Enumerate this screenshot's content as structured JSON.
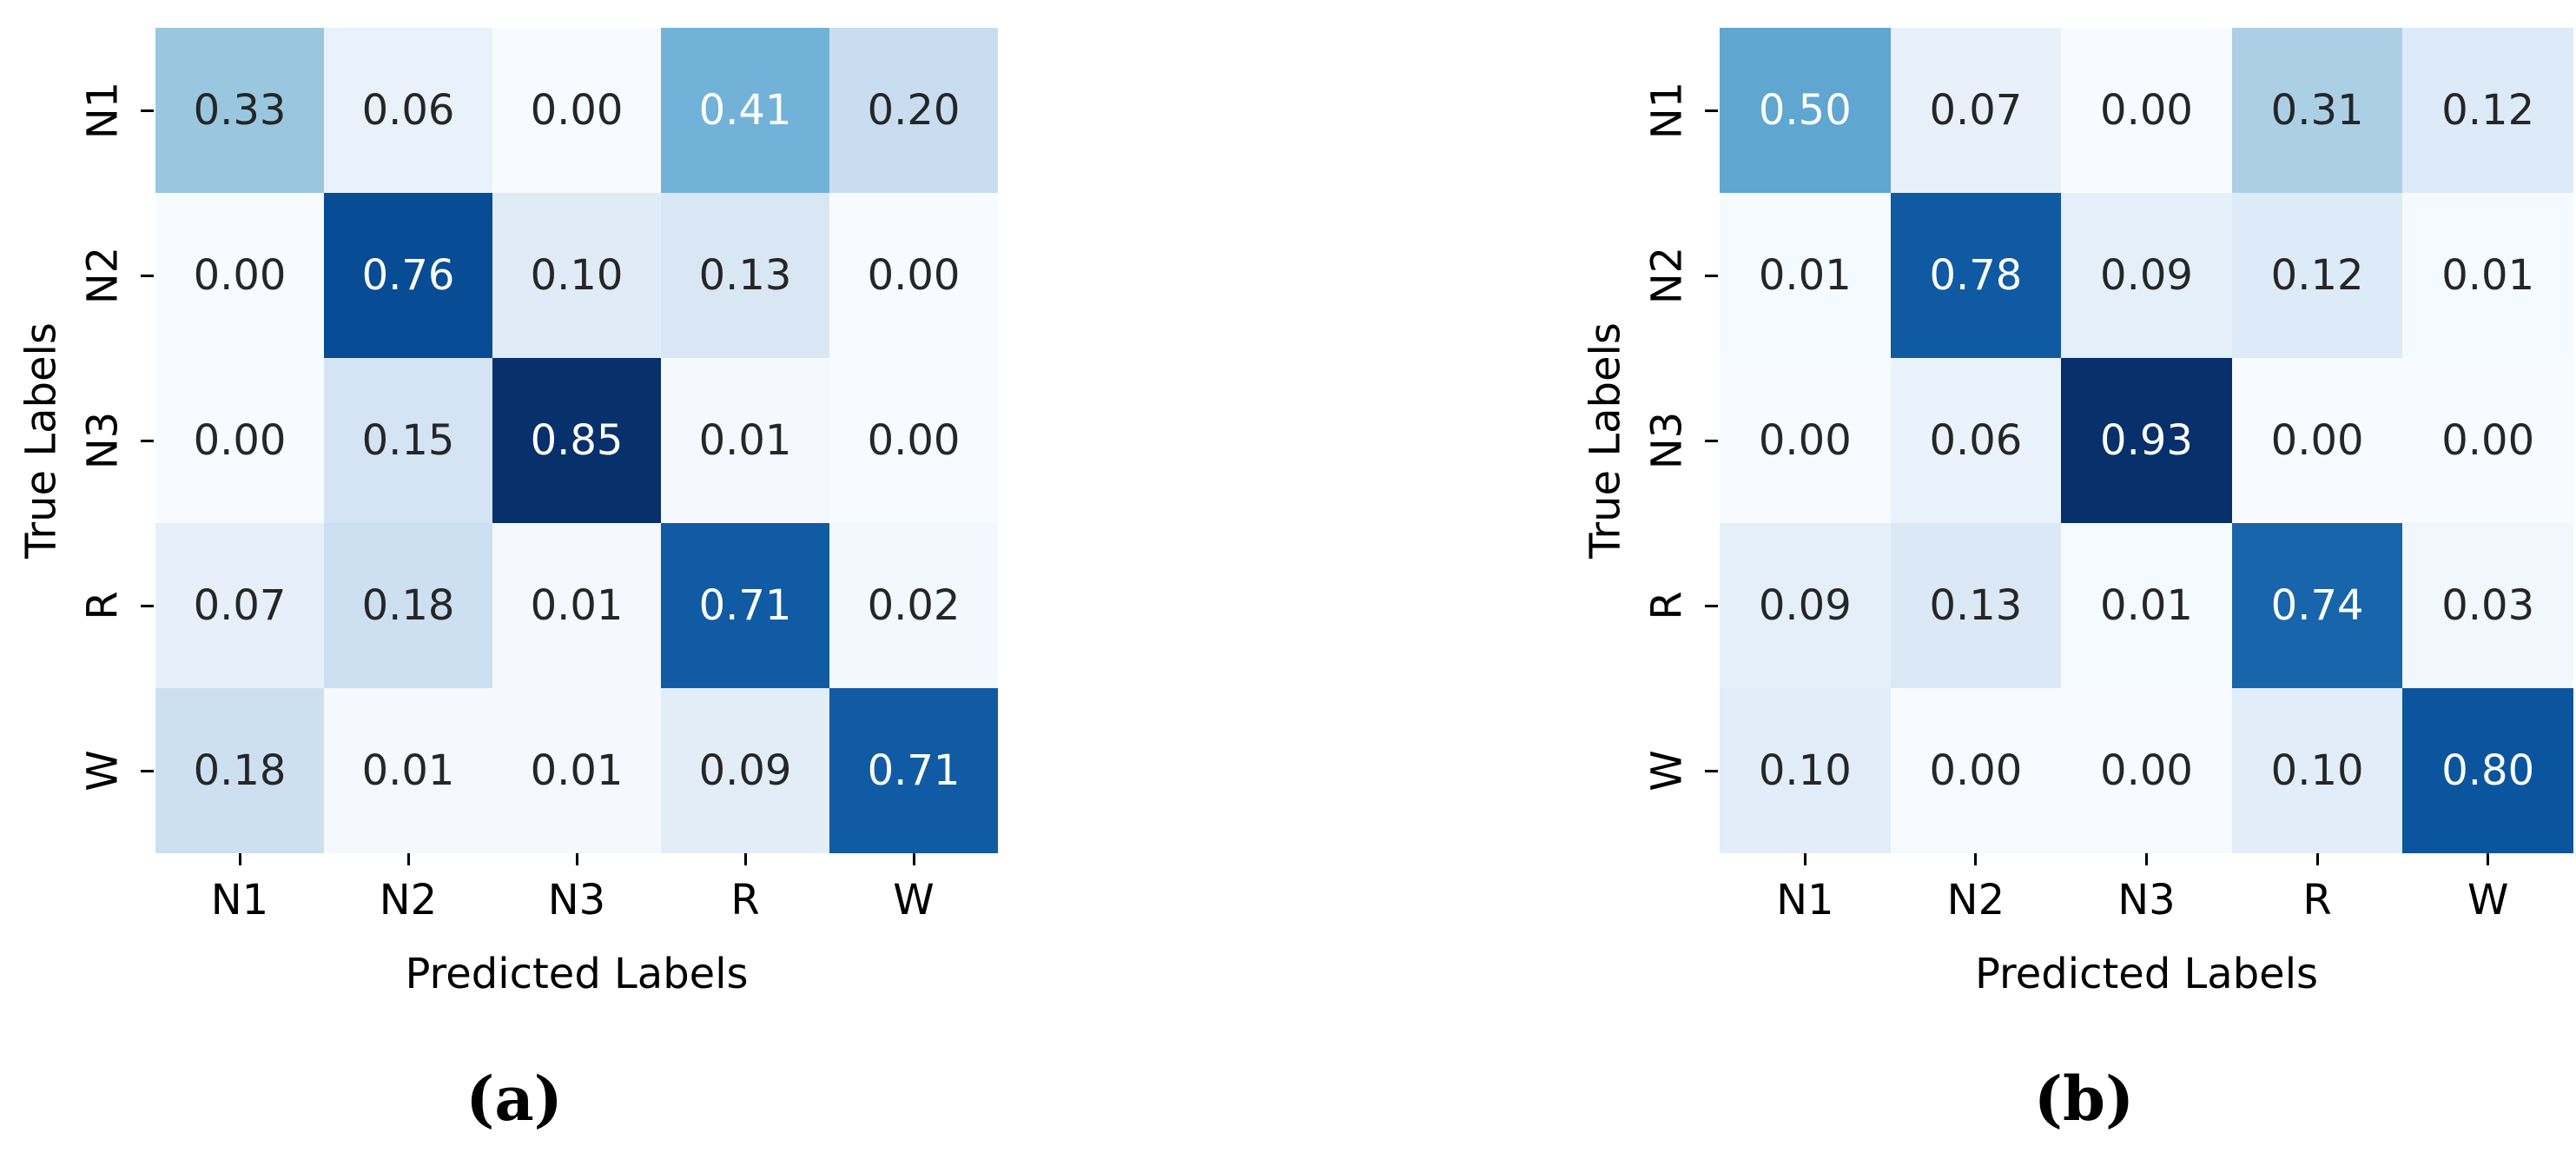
{
  "figure": {
    "background": "#ffffff",
    "colors": {
      "annotation_dark": "#262626",
      "annotation_light": "#ffffff",
      "tick": "#000000"
    }
  },
  "chart_data": [
    {
      "type": "heatmap",
      "panel": "a",
      "caption": "(a)",
      "xlabel": "Predicted Labels",
      "ylabel": "True Labels",
      "x_tick_labels": [
        "N1",
        "N2",
        "N3",
        "R",
        "W"
      ],
      "y_tick_labels": [
        "N1",
        "N2",
        "N3",
        "R",
        "W"
      ],
      "colormap": "Blues",
      "vmin": 0.0,
      "vmax": 0.85,
      "value_format": "2-decimals",
      "rows": [
        [
          0.33,
          0.06,
          0.0,
          0.41,
          0.2
        ],
        [
          0.0,
          0.76,
          0.1,
          0.13,
          0.0
        ],
        [
          0.0,
          0.15,
          0.85,
          0.01,
          0.0
        ],
        [
          0.07,
          0.18,
          0.01,
          0.71,
          0.02
        ],
        [
          0.18,
          0.01,
          0.01,
          0.09,
          0.71
        ]
      ]
    },
    {
      "type": "heatmap",
      "panel": "b",
      "caption": "(b)",
      "xlabel": "Predicted Labels",
      "ylabel": "True Labels",
      "x_tick_labels": [
        "N1",
        "N2",
        "N3",
        "R",
        "W"
      ],
      "y_tick_labels": [
        "N1",
        "N2",
        "N3",
        "R",
        "W"
      ],
      "colormap": "Blues",
      "vmin": 0.0,
      "vmax": 0.93,
      "value_format": "2-decimals",
      "rows": [
        [
          0.5,
          0.07,
          0.0,
          0.31,
          0.12
        ],
        [
          0.01,
          0.78,
          0.09,
          0.12,
          0.01
        ],
        [
          0.0,
          0.06,
          0.93,
          0.0,
          0.0
        ],
        [
          0.09,
          0.13,
          0.01,
          0.74,
          0.03
        ],
        [
          0.1,
          0.0,
          0.0,
          0.1,
          0.8
        ]
      ]
    }
  ]
}
